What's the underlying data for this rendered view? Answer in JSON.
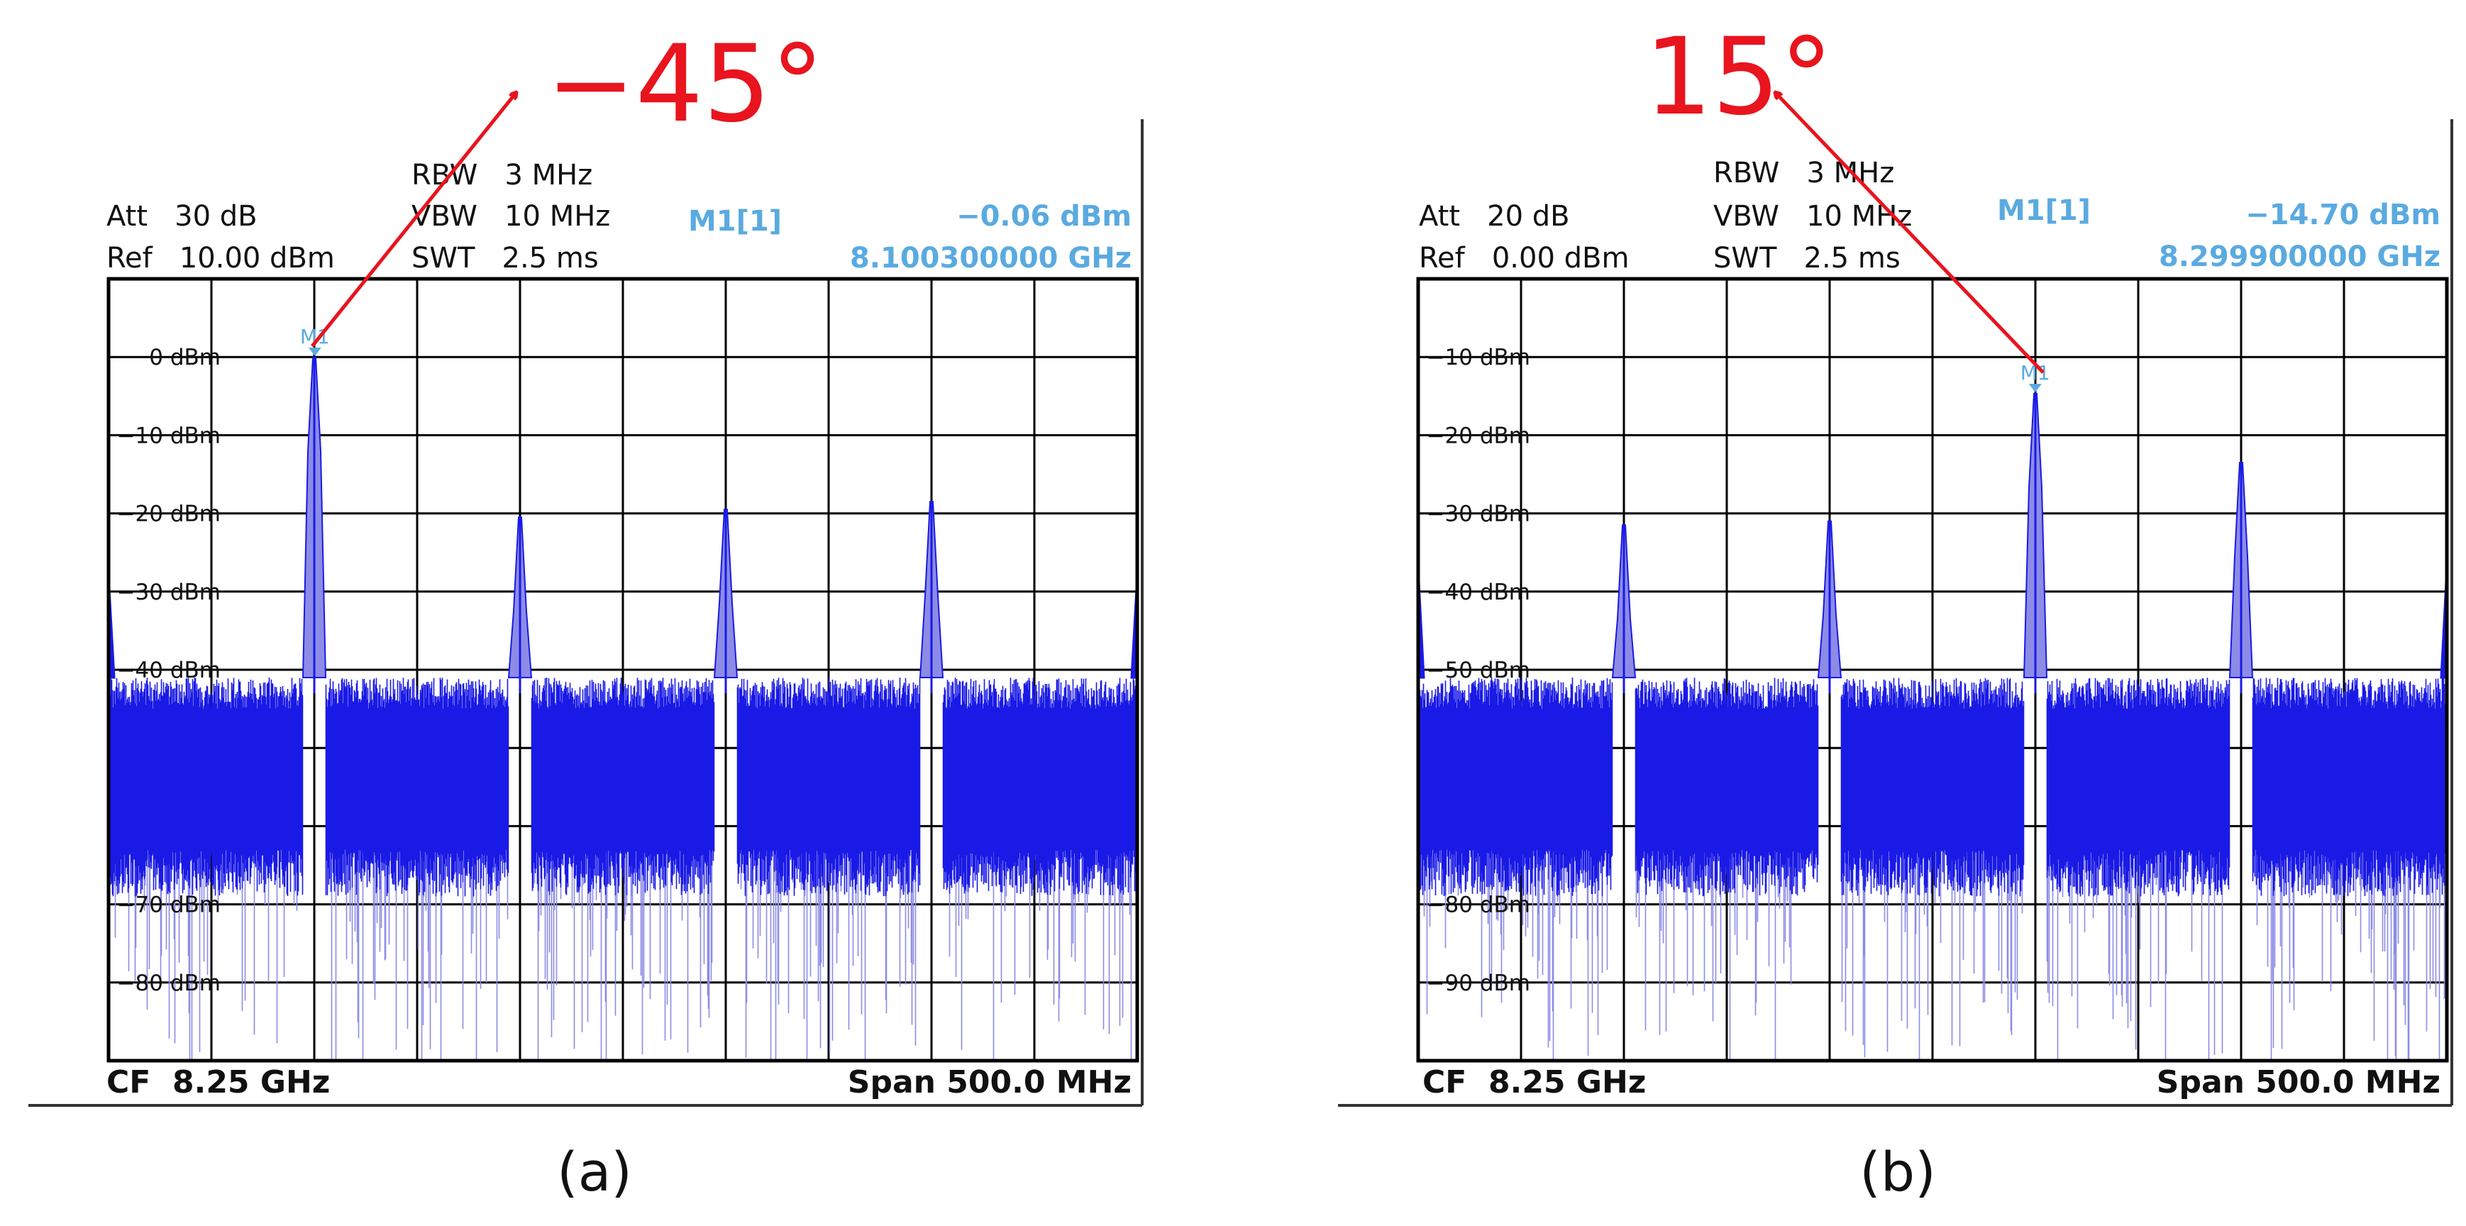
{
  "panels": [
    {
      "angle_label": "−45°",
      "caption": "(a)",
      "att": "Att   30 dB",
      "ref": "Ref   10.00 dBm",
      "rbw": "RBW   3 MHz",
      "vbw": "VBW   10 MHz",
      "swt": "SWT   2.5 ms",
      "marker_name": "M1[1]",
      "marker_label": "M1",
      "marker_level": "−0.06 dBm",
      "marker_freq": "8.100300000 GHz",
      "cf": "CF  8.25 GHz",
      "span": "Span 500.0 MHz"
    },
    {
      "angle_label": "15°",
      "caption": "(b)",
      "att": "Att   20 dB",
      "ref": "Ref   0.00 dBm",
      "rbw": "RBW   3 MHz",
      "vbw": "VBW   10 MHz",
      "swt": "SWT   2.5 ms",
      "marker_name": "M1[1]",
      "marker_label": "M1",
      "marker_level": "−14.70 dBm",
      "marker_freq": "8.299900000 GHz",
      "cf": "CF  8.25 GHz",
      "span": "Span 500.0 MHz"
    }
  ],
  "colors": {
    "trace": "#1a1ae6",
    "trace_light": "#8c8ce6",
    "marker": "#5aaae0",
    "arrow": "#e8141e",
    "grid": "#000000"
  },
  "chart_data": [
    {
      "type": "line",
      "x_unit": "GHz",
      "y_unit": "dBm",
      "xlim": [
        8.0,
        8.5
      ],
      "ylim": [
        10,
        -90
      ],
      "ytick_labels": [
        "0 dBm",
        "−10 dBm",
        "−20 dBm",
        "−30 dBm",
        "−40 dBm",
        "−70 dBm",
        "−80 dBm"
      ],
      "ytick_values": [
        0,
        -10,
        -20,
        -30,
        -40,
        -70,
        -80
      ],
      "grid": true,
      "noise_floor": {
        "top": -41,
        "body_low": -63,
        "min": -90
      },
      "peaks": [
        {
          "x": 8.1,
          "y": -0.06
        },
        {
          "x": 8.2,
          "y": -20.5
        },
        {
          "x": 8.3,
          "y": -19.5
        },
        {
          "x": 8.4,
          "y": -18.5
        }
      ],
      "edge_spurs": [
        {
          "x": 8.0,
          "y": -28
        },
        {
          "x": 8.5,
          "y": -28
        }
      ],
      "marker": {
        "x": 8.1003,
        "y": -0.06
      }
    },
    {
      "type": "line",
      "x_unit": "GHz",
      "y_unit": "dBm",
      "xlim": [
        8.0,
        8.5
      ],
      "ylim": [
        0,
        -100
      ],
      "ytick_labels": [
        "−10 dBm",
        "−20 dBm",
        "−30 dBm",
        "−40 dBm",
        "−50 dBm",
        "−80 dBm",
        "−90 dBm"
      ],
      "ytick_values": [
        -10,
        -20,
        -30,
        -40,
        -50,
        -80,
        -90
      ],
      "grid": true,
      "noise_floor": {
        "top": -51,
        "body_low": -73,
        "min": -100
      },
      "peaks": [
        {
          "x": 8.1,
          "y": -31.5
        },
        {
          "x": 8.2,
          "y": -31
        },
        {
          "x": 8.3,
          "y": -14.7
        },
        {
          "x": 8.4,
          "y": -23.5
        }
      ],
      "edge_spurs": [
        {
          "x": 8.0,
          "y": -37
        },
        {
          "x": 8.5,
          "y": -37
        }
      ],
      "marker": {
        "x": 8.2999,
        "y": -14.7
      }
    }
  ]
}
